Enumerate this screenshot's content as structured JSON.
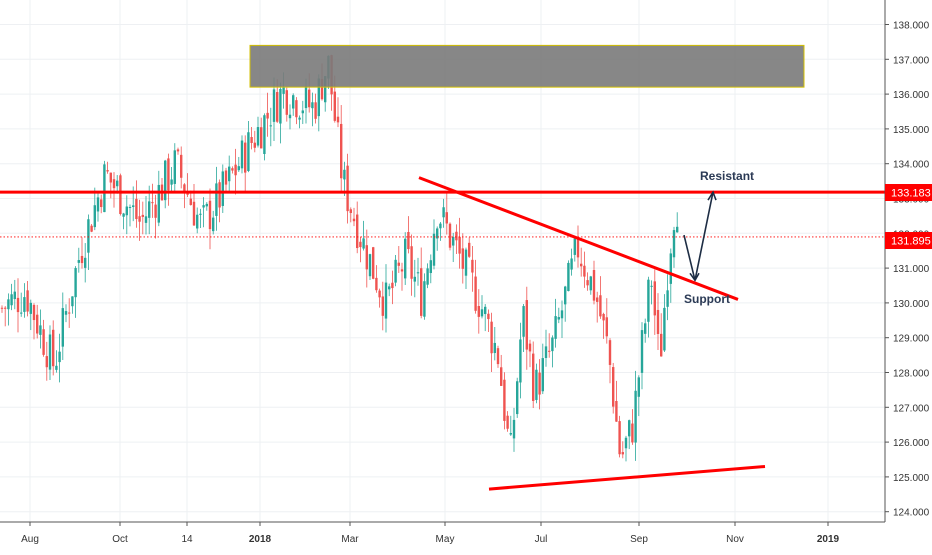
{
  "chart_data": {
    "type": "candlestick",
    "symbol_scale": "price",
    "x_tick_labels": [
      "Aug",
      "Oct",
      "14",
      "2018",
      "Mar",
      "May",
      "Jul",
      "Sep",
      "Nov",
      "2019"
    ],
    "y_tick_labels": [
      "124.000",
      "125.000",
      "126.000",
      "127.000",
      "128.000",
      "129.000",
      "130.000",
      "131.000",
      "132.000",
      "133.000",
      "134.000",
      "135.000",
      "136.000",
      "137.000",
      "138.000"
    ],
    "ylim": [
      124.0,
      138.4
    ],
    "grid": true,
    "last_price": 131.895,
    "resistance_level": 133.183,
    "price_labels": {
      "resistance": "133.183",
      "last": "131.895"
    },
    "supply_zone": {
      "from_month": "Dec 2017",
      "to_month": "Oct 2018",
      "low": 136.2,
      "high": 137.4
    },
    "trendlines": [
      {
        "name": "descending",
        "from": {
          "date": "Apr 2018",
          "price": 133.6
        },
        "to": {
          "date": "Oct 2018",
          "price": 130.1
        }
      },
      {
        "name": "ascending-support",
        "from": {
          "date": "Jun 2018",
          "price": 124.65
        },
        "to": {
          "date": "Dec 2018",
          "price": 125.3
        }
      }
    ],
    "annotations": [
      "Resistant",
      "Support"
    ],
    "projection": [
      {
        "date": "Sep 2018",
        "price": 131.95
      },
      {
        "date": "Oct 2018",
        "price": 130.65
      },
      {
        "date": "Oct 2018",
        "price": 133.183
      }
    ],
    "path_anchors": [
      {
        "date": "Jul 2017",
        "price": 129.8
      },
      {
        "date": "Aug 2017",
        "price": 130.3
      },
      {
        "date": "Aug 2017",
        "price": 128.2
      },
      {
        "date": "Sep 2017",
        "price": 131.5
      },
      {
        "date": "Sep 2017",
        "price": 133.7
      },
      {
        "date": "Oct 2017",
        "price": 132.3
      },
      {
        "date": "Nov 2017",
        "price": 134.0
      },
      {
        "date": "Nov 2017",
        "price": 132.2
      },
      {
        "date": "Dec 2017",
        "price": 133.3
      },
      {
        "date": "Dec 2017",
        "price": 134.5
      },
      {
        "date": "Jan 2018",
        "price": 136.1
      },
      {
        "date": "Feb 2018",
        "price": 135.6
      },
      {
        "date": "Feb 2018",
        "price": 136.9
      },
      {
        "date": "Feb 2018",
        "price": 133.5
      },
      {
        "date": "Mar 2018",
        "price": 131.8
      },
      {
        "date": "Mar 2018",
        "price": 130.0
      },
      {
        "date": "Apr 2018",
        "price": 131.3
      },
      {
        "date": "Apr 2018",
        "price": 130.2
      },
      {
        "date": "Apr 2018",
        "price": 132.7
      },
      {
        "date": "May 2018",
        "price": 131.5
      },
      {
        "date": "May 2018",
        "price": 130.0
      },
      {
        "date": "Jun 2018",
        "price": 128.5
      },
      {
        "date": "Jun 2018",
        "price": 125.5
      },
      {
        "date": "Jun 2018",
        "price": 129.7
      },
      {
        "date": "Jun 2018",
        "price": 127.5
      },
      {
        "date": "Jul 2018",
        "price": 128.8
      },
      {
        "date": "Jul 2018",
        "price": 131.6
      },
      {
        "date": "Aug 2018",
        "price": 130.2
      },
      {
        "date": "Aug 2018",
        "price": 128.6
      },
      {
        "date": "Aug 2018",
        "price": 125.5
      },
      {
        "date": "Aug 2018",
        "price": 126.5
      },
      {
        "date": "Sep 2018",
        "price": 129.0
      },
      {
        "date": "Sep 2018",
        "price": 130.8
      },
      {
        "date": "Sep 2018",
        "price": 128.2
      },
      {
        "date": "Sep 2018",
        "price": 131.0
      },
      {
        "date": "Sep 2018",
        "price": 133.1
      },
      {
        "date": "Sep 2018",
        "price": 131.9
      }
    ],
    "colors": {
      "up": "#26a69a",
      "down": "#ef5350",
      "level_line": "#ff0000",
      "zone_fill": "#7a7a7a",
      "zone_border": "#d4c000",
      "arrow": "#1d2d44",
      "annotation_text": "#2b3a55"
    }
  }
}
